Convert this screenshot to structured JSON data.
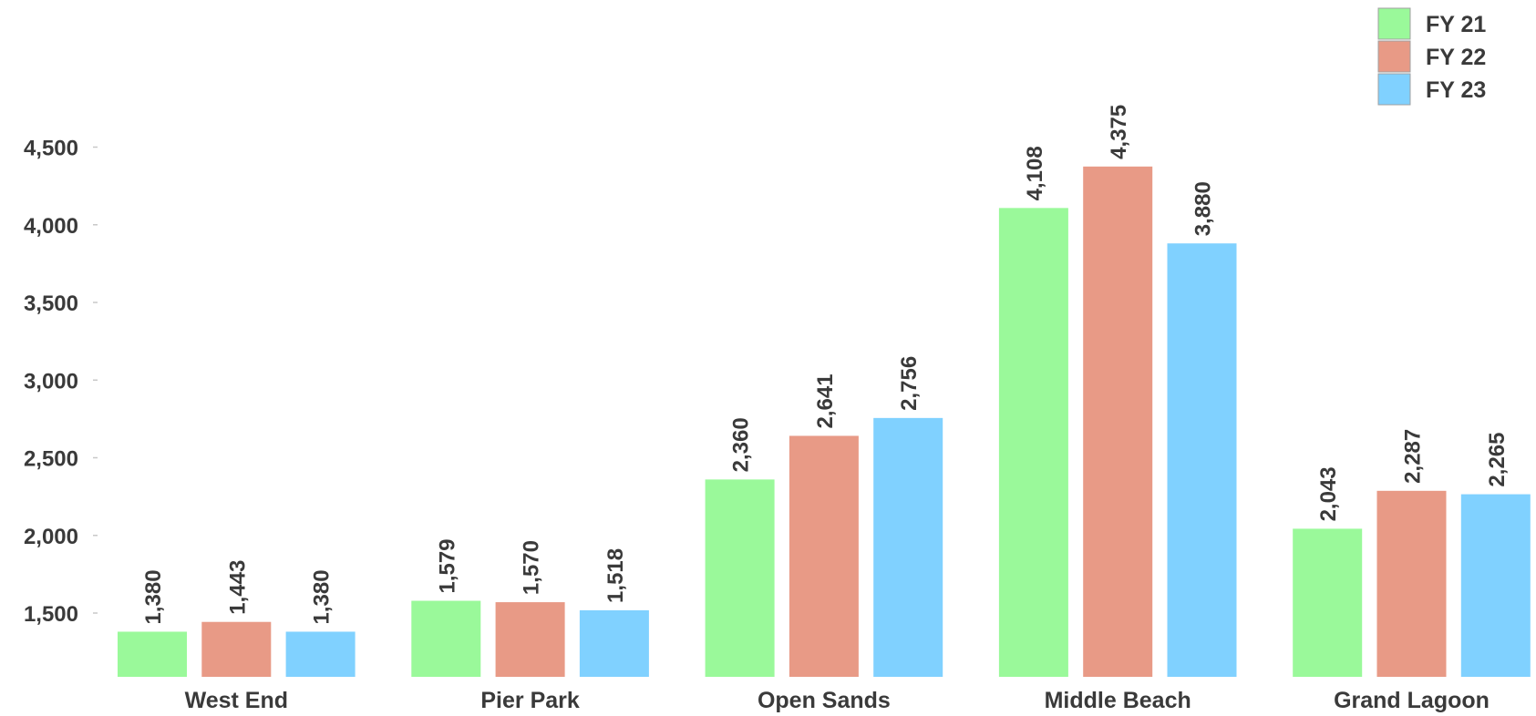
{
  "chart_data": {
    "type": "bar",
    "title": "",
    "xlabel": "",
    "ylabel": "",
    "categories": [
      "West End",
      "Pier Park",
      "Open Sands",
      "Middle Beach",
      "Grand Lagoon"
    ],
    "series": [
      {
        "name": "FY 21",
        "color": "#9AF99A",
        "values": [
          1380,
          1579,
          2360,
          4108,
          2043
        ],
        "labels": [
          "1,380",
          "1,579",
          "2,360",
          "4,108",
          "2,043"
        ]
      },
      {
        "name": "FY 22",
        "color": "#E89A86",
        "values": [
          1443,
          1570,
          2641,
          4375,
          2287
        ],
        "labels": [
          "1,443",
          "1,570",
          "2,641",
          "4,375",
          "2,287"
        ]
      },
      {
        "name": "FY 23",
        "color": "#80D1FF",
        "values": [
          1380,
          1518,
          2756,
          3880,
          2265
        ],
        "labels": [
          "1,380",
          "1,518",
          "2,756",
          "3,880",
          "2,265"
        ]
      }
    ],
    "yticks": [
      1500,
      2000,
      2500,
      3000,
      3500,
      4000,
      4500
    ],
    "ytick_labels": [
      "1,500",
      "2,000",
      "2,500",
      "3,000",
      "3,500",
      "4,000",
      "4,500"
    ],
    "ylim": [
      1080,
      4500
    ],
    "grid": false,
    "legend_position": "top-right"
  }
}
